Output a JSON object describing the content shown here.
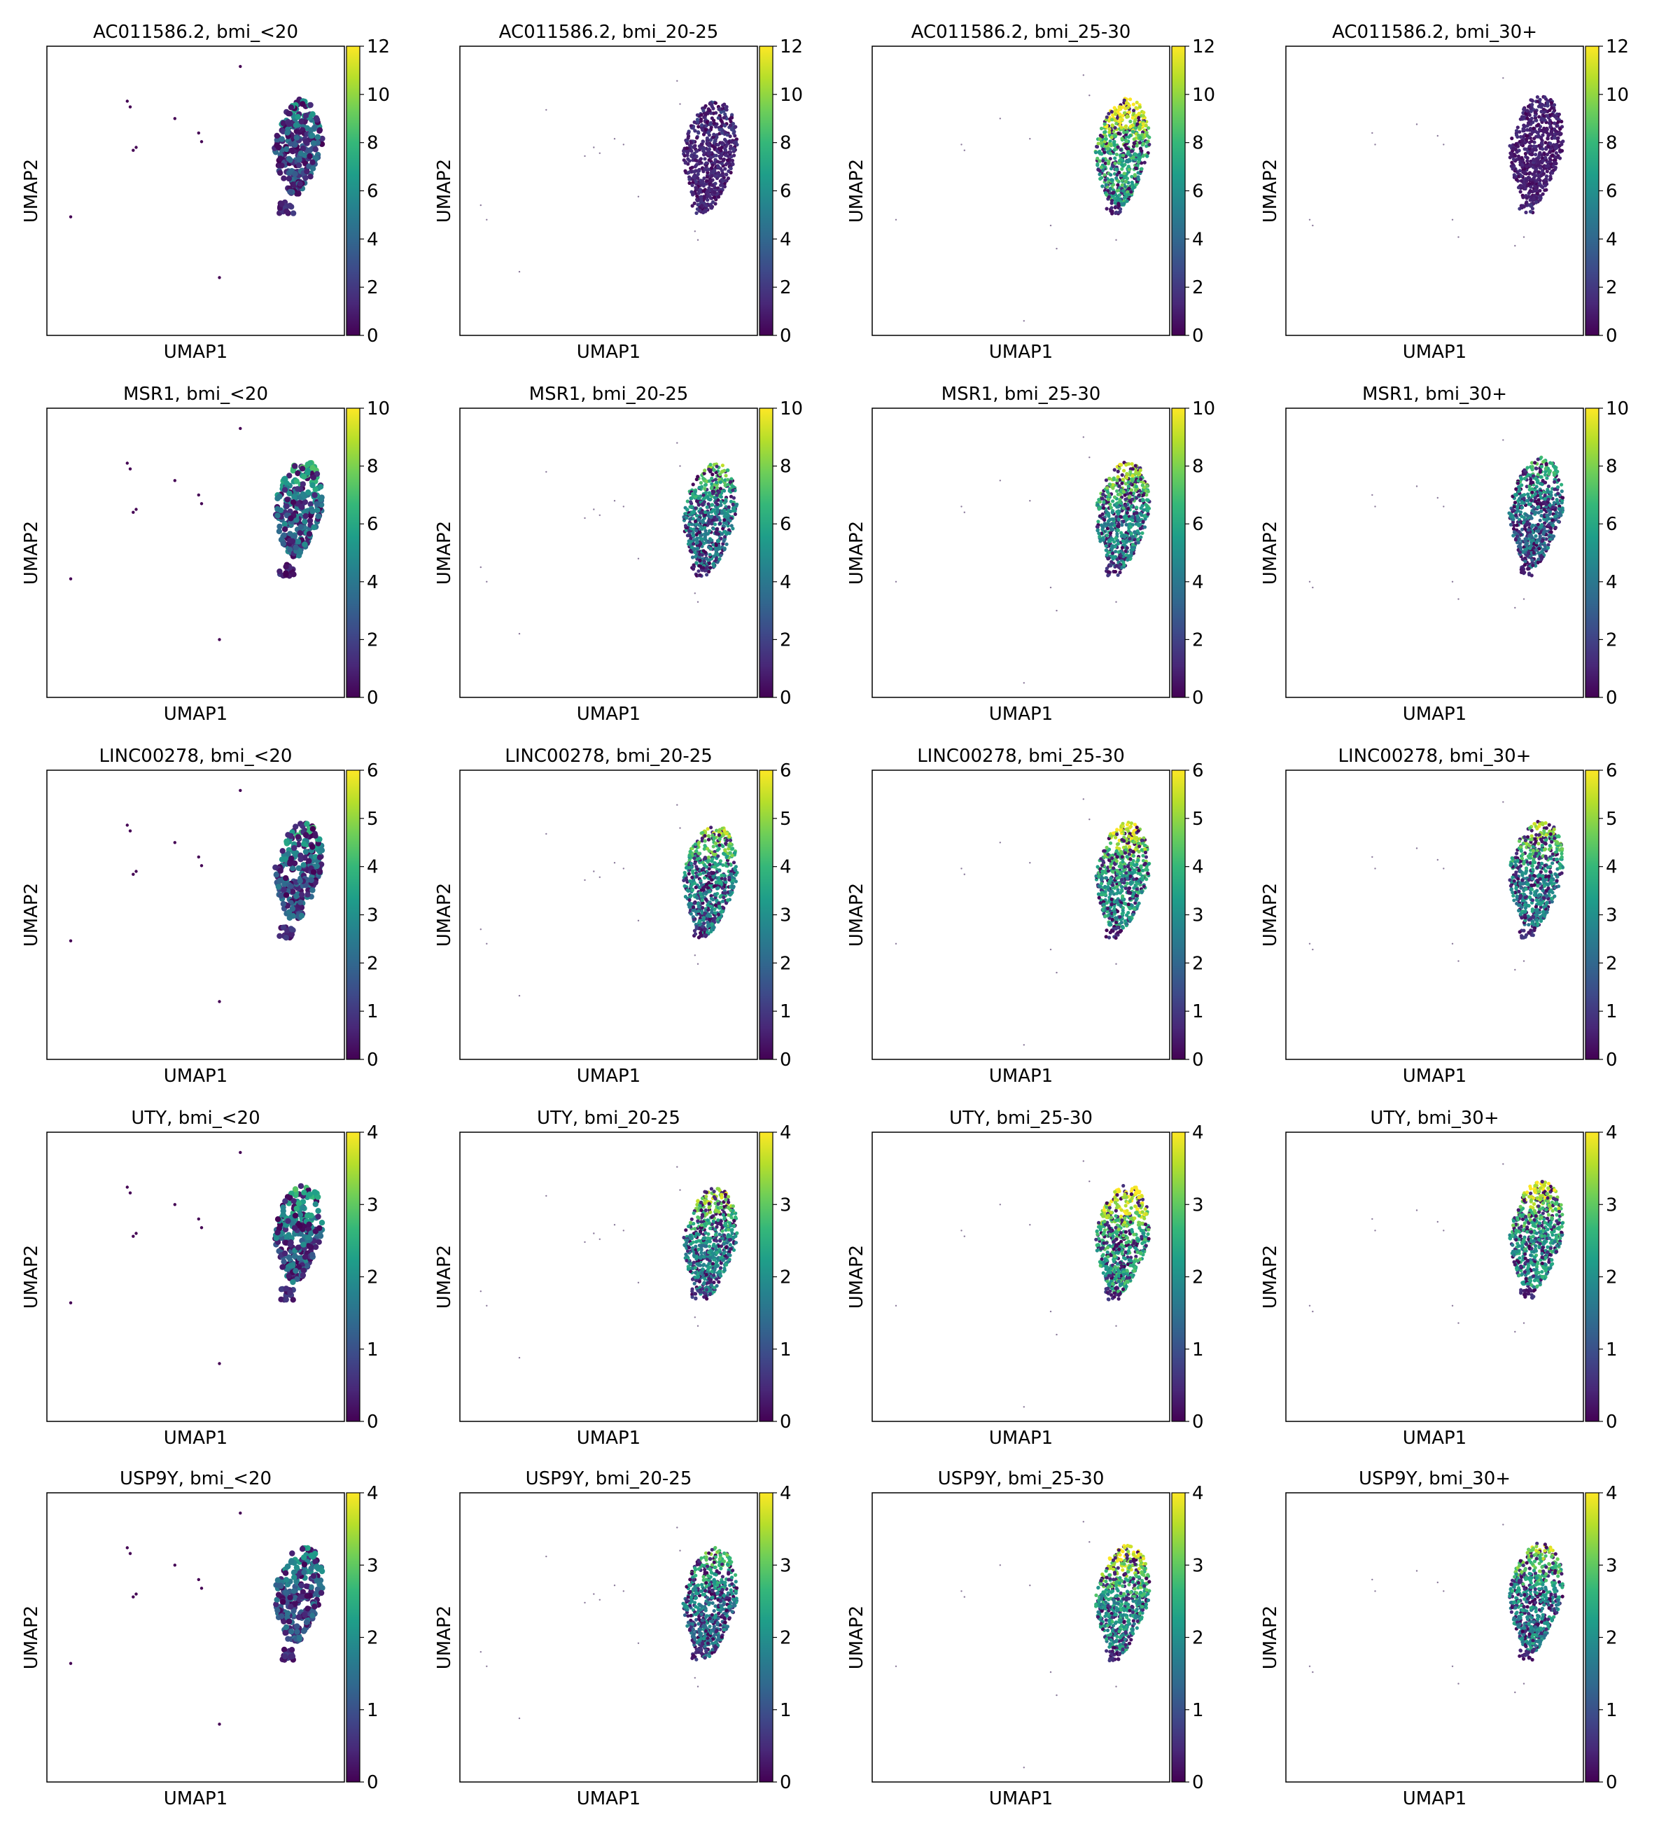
{
  "figure": {
    "panel_title_separator": ", ",
    "axes": {
      "xlabel": "UMAP1",
      "ylabel": "UMAP2"
    },
    "colormap": {
      "name": "viridis",
      "stops": [
        "#440154",
        "#482878",
        "#3e4989",
        "#31688e",
        "#26828e",
        "#1f9e89",
        "#35b779",
        "#6ece58",
        "#b5de2b",
        "#fde725"
      ]
    },
    "point_color_background": "#440154"
  },
  "chart_data": {
    "type": "scatter",
    "kind": "UMAP feature plot grid",
    "groups": [
      "bmi_<20",
      "bmi_20-25",
      "bmi_25-30",
      "bmi_30+"
    ],
    "features": [
      {
        "name": "AC011586.2",
        "colorbar_ticks": [
          0,
          2,
          4,
          6,
          8,
          10,
          12
        ],
        "vmax": 12
      },
      {
        "name": "MSR1",
        "colorbar_ticks": [
          0,
          2,
          4,
          6,
          8,
          10
        ],
        "vmax": 10
      },
      {
        "name": "LINC00278",
        "colorbar_ticks": [
          0,
          1,
          2,
          3,
          4,
          5,
          6
        ],
        "vmax": 6
      },
      {
        "name": "UTY",
        "colorbar_ticks": [
          0,
          1,
          2,
          3,
          4
        ],
        "vmax": 4
      },
      {
        "name": "USP9Y",
        "colorbar_ticks": [
          0,
          1,
          2,
          3,
          4
        ],
        "vmax": 4
      }
    ],
    "grid": false,
    "legend": "colorbar-right"
  }
}
